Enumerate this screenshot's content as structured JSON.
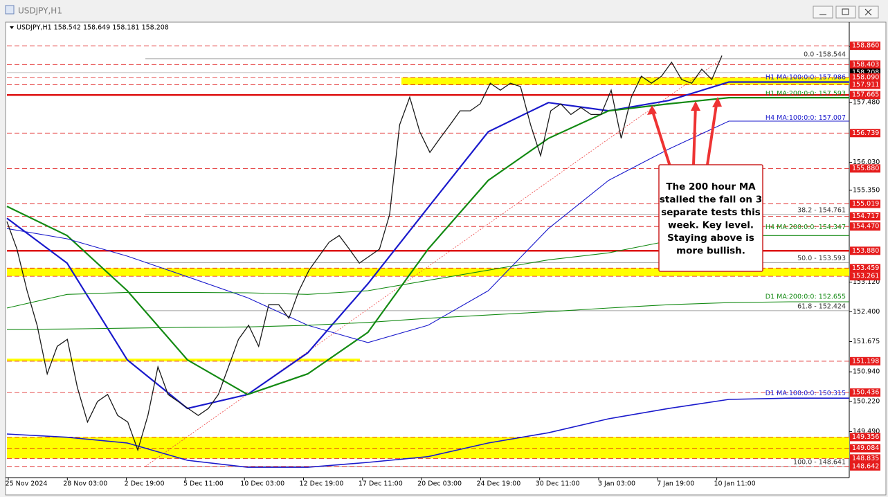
{
  "window": {
    "title": "USDJPY,H1"
  },
  "info": "USDJPY,H1  158.542 158.649 158.181 158.208",
  "chart": {
    "ylim": [
      148.37,
      159.4
    ],
    "yticks": [
      {
        "value": 158.84,
        "label": "158.840"
      },
      {
        "value": 157.48,
        "label": "157.480"
      },
      {
        "value": 156.03,
        "label": "156.030"
      },
      {
        "value": 155.35,
        "label": "155.350"
      },
      {
        "value": 153.12,
        "label": "153.120"
      },
      {
        "value": 152.4,
        "label": "152.400"
      },
      {
        "value": 151.675,
        "label": "151.675"
      },
      {
        "value": 150.94,
        "label": "150.940"
      },
      {
        "value": 150.22,
        "label": "150.220"
      },
      {
        "value": 149.49,
        "label": "149.490"
      }
    ],
    "time_labels": [
      "25 Nov 2024",
      "28 Nov 03:00",
      "2 Dec 19:00",
      "5 Dec 11:00",
      "10 Dec 03:00",
      "12 Dec 19:00",
      "17 Dec 11:00",
      "20 Dec 03:00",
      "24 Dec 19:00",
      "30 Dec 11:00",
      "3 Jan 03:00",
      "7 Jan 19:00",
      "10 Jan 11:00"
    ],
    "price": [
      154.59,
      153.92,
      152.91,
      152.07,
      150.89,
      151.56,
      151.73,
      150.56,
      149.72,
      150.22,
      150.39,
      149.88,
      149.72,
      149.04,
      149.88,
      151.06,
      150.39,
      150.22,
      150.05,
      149.88,
      150.05,
      150.39,
      151.06,
      151.73,
      152.07,
      151.56,
      152.57,
      152.57,
      152.24,
      152.91,
      153.41,
      153.75,
      154.09,
      154.25,
      153.92,
      153.58,
      153.75,
      153.92,
      154.76,
      156.94,
      157.61,
      156.77,
      156.27,
      156.61,
      156.94,
      157.28,
      157.28,
      157.45,
      157.95,
      157.78,
      157.95,
      157.87,
      156.94,
      156.19,
      157.28,
      157.45,
      157.19,
      157.36,
      157.19,
      157.19,
      157.78,
      156.61,
      157.61,
      158.12,
      157.95,
      158.12,
      158.46,
      158.04,
      157.95,
      158.29,
      158.04,
      158.62
    ],
    "moving_averages": [
      {
        "name": "H1 MA:100:0:0: 157.986",
        "value": 157.986,
        "color": "#1a1acc",
        "width": 2.2,
        "values": [
          154.67,
          153.58,
          151.23,
          150.05,
          150.39,
          151.4,
          153.08,
          154.93,
          156.77,
          157.48,
          157.28,
          157.53,
          157.98,
          157.98,
          157.98
        ]
      },
      {
        "name": "H1 MA:200:0:0: 157.593",
        "value": 157.593,
        "color": "#138a13",
        "width": 2.2,
        "values": [
          154.96,
          154.25,
          152.91,
          151.23,
          150.39,
          150.89,
          151.9,
          153.92,
          155.59,
          156.61,
          157.28,
          157.45,
          157.6,
          157.6,
          157.6
        ]
      },
      {
        "name": "H4 MA:100:0:0: 157.007",
        "value": 157.007,
        "color": "#1a1acc",
        "width": 1.1,
        "values": [
          154.42,
          154.17,
          153.75,
          153.25,
          152.74,
          152.07,
          151.65,
          152.07,
          152.91,
          154.42,
          155.59,
          156.35,
          157.03,
          157.03,
          157.03
        ]
      },
      {
        "name": "H4 MA:200:0:0: 154.347",
        "value": 154.347,
        "color": "#138a13",
        "width": 1.1,
        "values": [
          152.49,
          152.82,
          152.87,
          152.87,
          152.86,
          152.82,
          152.91,
          153.16,
          153.41,
          153.66,
          153.83,
          154.12,
          154.25,
          154.25,
          154.25
        ]
      },
      {
        "name": "D1 MA:200:0:0: 152.655",
        "value": 152.655,
        "color": "#138a13",
        "width": 1.1,
        "values": [
          151.97,
          151.98,
          152.0,
          152.02,
          152.03,
          152.07,
          152.14,
          152.24,
          152.32,
          152.4,
          152.49,
          152.57,
          152.62,
          152.64,
          152.64
        ]
      },
      {
        "name": "D1 MA:100:0:0: 150.315",
        "value": 150.315,
        "color": "#1a1acc",
        "width": 1.6,
        "values": [
          149.43,
          149.35,
          149.21,
          148.79,
          148.62,
          148.62,
          148.74,
          148.88,
          149.21,
          149.46,
          149.8,
          150.05,
          150.27,
          150.3,
          150.3
        ]
      }
    ],
    "fib_levels": [
      {
        "label": "0.0 -158.544",
        "value": 158.544
      },
      {
        "label": "38.2 - 154.761",
        "value": 154.761
      },
      {
        "label": "50.0 - 153.593",
        "value": 153.593
      },
      {
        "label": "61.8 - 152.424",
        "value": 152.424
      },
      {
        "label": "100.0 - 148.641",
        "value": 148.641
      }
    ],
    "zones": [
      [
        157.911,
        158.09
      ],
      [
        153.261,
        153.459
      ],
      [
        151.198,
        151.26
      ],
      [
        148.835,
        149.356
      ]
    ],
    "levels": [
      {
        "label": "158.860",
        "value": 158.86,
        "style": "dashed"
      },
      {
        "label": "158.403",
        "value": 158.403,
        "style": "dashed"
      },
      {
        "label": "158.208",
        "value": 158.208,
        "style": "current"
      },
      {
        "label": "158.090",
        "value": 158.09,
        "style": "dashed"
      },
      {
        "label": "157.911",
        "value": 157.911,
        "style": "dashed"
      },
      {
        "label": "157.665",
        "value": 157.665,
        "style": "solid"
      },
      {
        "label": "156.739",
        "value": 156.739,
        "style": "dashed"
      },
      {
        "label": "155.880",
        "value": 155.88,
        "style": "dashed"
      },
      {
        "label": "155.019",
        "value": 155.019,
        "style": "dashed"
      },
      {
        "label": "154.717",
        "value": 154.717,
        "style": "dashed"
      },
      {
        "label": "154.470",
        "value": 154.47,
        "style": "dashed"
      },
      {
        "label": "153.880",
        "value": 153.88,
        "style": "solid"
      },
      {
        "label": "153.459",
        "value": 153.459,
        "style": "dashed"
      },
      {
        "label": "153.261",
        "value": 153.261,
        "style": "dashed"
      },
      {
        "label": "151.198",
        "value": 151.198,
        "style": "dashed"
      },
      {
        "label": "150.436",
        "value": 150.436,
        "style": "dashed"
      },
      {
        "label": "149.356",
        "value": 149.356,
        "style": "dashed"
      },
      {
        "label": "149.084",
        "value": 149.084,
        "style": "dashed"
      },
      {
        "label": "148.835",
        "value": 148.835,
        "style": "dashed"
      },
      {
        "label": "148.642",
        "value": 148.642,
        "style": "dashed"
      }
    ]
  },
  "annotation": {
    "lines": [
      "The 200 hour MA",
      "stalled the fall on 3",
      "separate tests this",
      "week. Key level.",
      "Staying above is",
      "more bullish."
    ]
  }
}
